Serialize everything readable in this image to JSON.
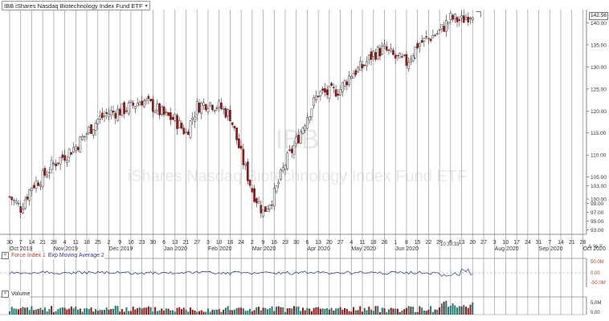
{
  "symbol_selector": {
    "label": "IBB iShares Nasdaq Biotechnology Index Fund ETF",
    "dropdown_icon": "chevron-down-icon"
  },
  "watermark": {
    "ticker": "IBB",
    "name": "iShares Nasdaq Biotechnology Index Fund ETF"
  },
  "last_price": "142.56",
  "time_label": "10:39:33",
  "panes": {
    "indicator": {
      "label_a": "Force Index 1",
      "label_b": "Exp Moving Average 2",
      "close_icon": "close-icon",
      "ticks": [
        "50.0M",
        "0.00",
        "-50.0M"
      ]
    },
    "volume": {
      "label": "Volume",
      "close_icon": "close-icon",
      "ticks": [
        "5.0M",
        "0.00"
      ]
    }
  },
  "corner_icons": [
    "A",
    "%",
    "F"
  ],
  "colors": {
    "up_candle": "#ffffff",
    "down_candle": "#8b1a1a",
    "volume_up": "#1f7a6e",
    "volume_down": "#8b1a1a",
    "force_line": "#2e3192",
    "grid": "#9a9a9a"
  },
  "chart_data": {
    "type": "candlestick",
    "title": "IBB iShares Nasdaq Biotechnology Index Fund ETF",
    "y_ticks": [
      93,
      95,
      97,
      99,
      100,
      103,
      105,
      110,
      115,
      120,
      125,
      130,
      135,
      140
    ],
    "y_range": [
      92,
      143
    ],
    "x_day_ticks": [
      "30",
      "7",
      "14",
      "21",
      "28",
      "4",
      "11",
      "18",
      "25",
      "2",
      "9",
      "16",
      "23",
      "30",
      "6",
      "13",
      "21",
      "27",
      "3",
      "10",
      "18",
      "24",
      "2",
      "9",
      "16",
      "23",
      "30",
      "6",
      "13",
      "20",
      "27",
      "4",
      "11",
      "18",
      "26",
      "1",
      "8",
      "15",
      "22",
      "29",
      "6",
      "13",
      "20",
      "27",
      "3",
      "10",
      "17",
      "24",
      "31",
      "7",
      "14",
      "21",
      "28"
    ],
    "x_month_labels": [
      {
        "text": "Oct 2019",
        "tick_index": 0
      },
      {
        "text": "Nov 2019",
        "tick_index": 4
      },
      {
        "text": "Dec 2019",
        "tick_index": 9
      },
      {
        "text": "Jan 2020",
        "tick_index": 14
      },
      {
        "text": "Feb 2020",
        "tick_index": 18
      },
      {
        "text": "Mar 2020",
        "tick_index": 22
      },
      {
        "text": "Apr 2020",
        "tick_index": 27
      },
      {
        "text": "May 2020",
        "tick_index": 31
      },
      {
        "text": "Jun 2020",
        "tick_index": 35
      },
      {
        "text": "Aug 2020",
        "tick_index": 44
      },
      {
        "text": "Sep 2020",
        "tick_index": 48
      },
      {
        "text": "Oct 2020",
        "tick_index": 52
      }
    ],
    "week_closes": [
      100.5,
      98,
      103,
      105,
      108,
      110,
      112,
      115,
      118,
      119.5,
      120,
      121,
      122.5,
      121,
      119,
      118,
      115,
      121,
      122,
      121,
      119,
      110,
      102,
      97,
      101,
      108,
      113,
      119,
      124,
      124,
      125,
      128.5,
      130,
      133,
      134,
      132,
      131,
      135,
      136.5,
      138,
      141,
      140.5,
      142.56
    ],
    "last_price": 142.56
  }
}
